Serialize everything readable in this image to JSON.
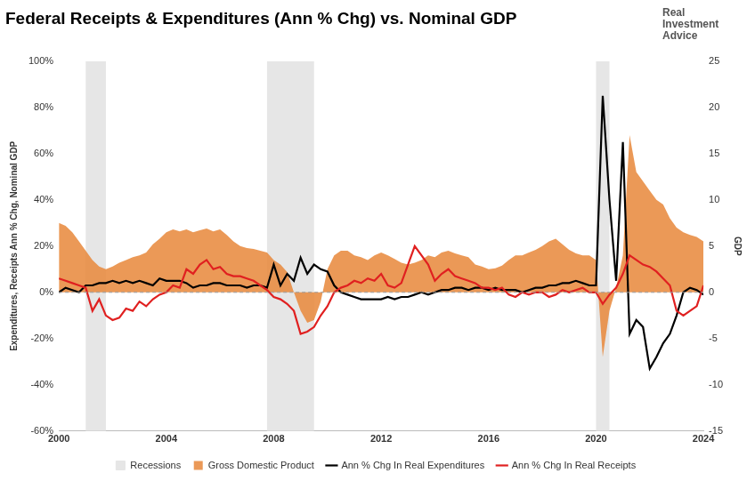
{
  "chart_data": {
    "type": "line",
    "title": "Federal Receipts & Expenditures (Ann % Chg) vs. Nominal GDP",
    "annotations": [
      "Real Investment Advice"
    ],
    "y_label": "Expenditures, Receipts Ann % Chg, Nominal GDP",
    "y2_label": "GDP",
    "grid": false,
    "legend": "bottom",
    "x": [
      2000,
      2000.25,
      2000.5,
      2000.75,
      2001,
      2001.25,
      2001.5,
      2001.75,
      2002,
      2002.25,
      2002.5,
      2002.75,
      2003,
      2003.25,
      2003.5,
      2003.75,
      2004,
      2004.25,
      2004.5,
      2004.75,
      2005,
      2005.25,
      2005.5,
      2005.75,
      2006,
      2006.25,
      2006.5,
      2006.75,
      2007,
      2007.25,
      2007.5,
      2007.75,
      2008,
      2008.25,
      2008.5,
      2008.75,
      2009,
      2009.25,
      2009.5,
      2009.75,
      2010,
      2010.25,
      2010.5,
      2010.75,
      2011,
      2011.25,
      2011.5,
      2011.75,
      2012,
      2012.25,
      2012.5,
      2012.75,
      2013,
      2013.25,
      2013.5,
      2013.75,
      2014,
      2014.25,
      2014.5,
      2014.75,
      2015,
      2015.25,
      2015.5,
      2015.75,
      2016,
      2016.25,
      2016.5,
      2016.75,
      2017,
      2017.25,
      2017.5,
      2017.75,
      2018,
      2018.25,
      2018.5,
      2018.75,
      2019,
      2019.25,
      2019.5,
      2019.75,
      2020,
      2020.25,
      2020.5,
      2020.75,
      2021,
      2021.25,
      2021.5,
      2021.75,
      2022,
      2022.25,
      2022.5,
      2022.75,
      2023,
      2023.25,
      2023.5,
      2023.75,
      2024
    ],
    "xlim": [
      2000,
      2024
    ],
    "xticks": [
      2000,
      2004,
      2008,
      2012,
      2016,
      2020,
      2024
    ],
    "ylim": [
      -60,
      100
    ],
    "yticks": [
      {
        "value": -60,
        "label": "-60%"
      },
      {
        "value": -40,
        "label": "-40%"
      },
      {
        "value": -20,
        "label": "-20%"
      },
      {
        "value": 0,
        "label": "0%"
      },
      {
        "value": 20,
        "label": "20%"
      },
      {
        "value": 40,
        "label": "40%"
      },
      {
        "value": 60,
        "label": "60%"
      },
      {
        "value": 80,
        "label": "80%"
      },
      {
        "value": 100,
        "label": "100%"
      }
    ],
    "y2lim": [
      -15,
      25
    ],
    "y2ticks": [
      -15,
      -10,
      -5,
      0,
      5,
      10,
      15,
      20,
      25
    ],
    "recessions": {
      "name": "Recessions",
      "color": "#e6e6e6",
      "ranges": [
        [
          2001,
          2001.75
        ],
        [
          2007.75,
          2009.5
        ],
        [
          2020,
          2020.5
        ]
      ]
    },
    "series": [
      {
        "name": "Gross Domestic Product",
        "type": "area",
        "axis": "y2",
        "color": "#e8873a",
        "values": [
          7.5,
          7.2,
          6.5,
          5.5,
          4.5,
          3.5,
          2.8,
          2.5,
          2.8,
          3.2,
          3.5,
          3.8,
          4.0,
          4.3,
          5.2,
          5.8,
          6.5,
          6.8,
          6.6,
          6.8,
          6.5,
          6.7,
          6.9,
          6.6,
          6.8,
          6.2,
          5.5,
          5.0,
          4.8,
          4.7,
          4.5,
          4.3,
          3.5,
          3.0,
          2.2,
          0.0,
          -2.0,
          -3.3,
          -3.0,
          -1.0,
          2.5,
          4.0,
          4.5,
          4.5,
          4.0,
          3.8,
          3.5,
          4.0,
          4.3,
          4.0,
          3.6,
          3.2,
          3.0,
          3.2,
          3.5,
          4.0,
          3.8,
          4.3,
          4.5,
          4.2,
          4.0,
          3.8,
          3.0,
          2.8,
          2.5,
          2.6,
          2.9,
          3.5,
          4.0,
          4.0,
          4.3,
          4.6,
          5.0,
          5.5,
          5.8,
          5.2,
          4.6,
          4.2,
          4.0,
          4.0,
          3.5,
          -7.0,
          -2.0,
          0.5,
          4.0,
          17.0,
          13.0,
          12.0,
          11.0,
          10.0,
          9.5,
          8.0,
          7.0,
          6.5,
          6.2,
          6.0,
          5.5
        ]
      },
      {
        "name": "Ann % Chg In Real Expenditures",
        "type": "line",
        "color": "#000000",
        "values": [
          0,
          2,
          1,
          0,
          3,
          3,
          4,
          4,
          5,
          4,
          5,
          4,
          5,
          4,
          3,
          6,
          5,
          5,
          5,
          4,
          2,
          3,
          3,
          4,
          4,
          3,
          3,
          3,
          2,
          3,
          3,
          2,
          12,
          3,
          8,
          5,
          15,
          8,
          12,
          10,
          9,
          3,
          0,
          -1,
          -2,
          -3,
          -3,
          -3,
          -3,
          -2,
          -3,
          -2,
          -2,
          -1,
          0,
          -1,
          0,
          1,
          1,
          2,
          2,
          1,
          2,
          2,
          1,
          2,
          1,
          1,
          1,
          0,
          1,
          2,
          2,
          3,
          3,
          4,
          4,
          5,
          4,
          3,
          3,
          85,
          40,
          5,
          65,
          -18,
          -12,
          -15,
          -33,
          -28,
          -22,
          -18,
          -10,
          0,
          2,
          1,
          -1
        ]
      },
      {
        "name": "Ann % Chg In Real Receipts",
        "type": "line",
        "color": "#e02020",
        "values": [
          6,
          5,
          4,
          3,
          2,
          -8,
          -3,
          -10,
          -12,
          -11,
          -7,
          -8,
          -4,
          -6,
          -3,
          -1,
          0,
          3,
          2,
          10,
          8,
          12,
          14,
          10,
          11,
          8,
          7,
          7,
          6,
          5,
          3,
          1,
          -2,
          -3,
          -5,
          -8,
          -18,
          -17,
          -15,
          -10,
          -6,
          0,
          2,
          3,
          5,
          4,
          6,
          5,
          8,
          3,
          2,
          4,
          12,
          20,
          16,
          12,
          5,
          8,
          10,
          7,
          6,
          5,
          4,
          2,
          2,
          1,
          2,
          -1,
          -2,
          0,
          -1,
          0,
          0,
          -2,
          -1,
          1,
          0,
          1,
          2,
          0,
          0,
          -5,
          -1,
          2,
          8,
          16,
          14,
          12,
          11,
          9,
          6,
          3,
          -8,
          -10,
          -8,
          -6,
          3
        ]
      }
    ]
  }
}
